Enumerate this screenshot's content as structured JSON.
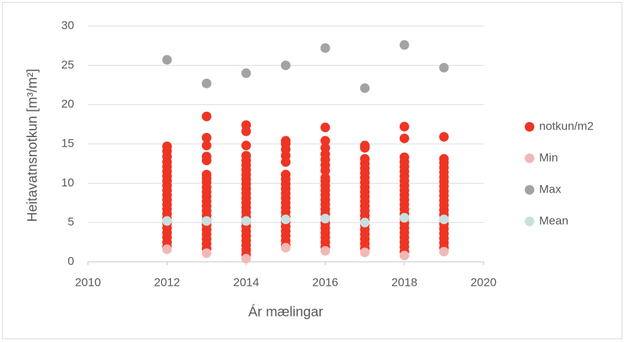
{
  "chart_data": {
    "type": "scatter",
    "xlabel": "Ár mælingar",
    "ylabel": "Heitavatnsnotkun [m³/m²]",
    "xlim": [
      2010,
      2020
    ],
    "xticks": [
      2010,
      2012,
      2014,
      2016,
      2018,
      2020
    ],
    "ylim": [
      0,
      30
    ],
    "yticks": [
      0,
      5,
      10,
      15,
      20,
      25,
      30
    ],
    "grid": true,
    "legend": "right",
    "series": [
      {
        "name": "notkun/m2",
        "color": "#ee3524",
        "x": [
          2012,
          2012,
          2012,
          2012,
          2012,
          2012,
          2012,
          2012,
          2012,
          2012,
          2012,
          2012,
          2012,
          2012,
          2012,
          2012,
          2012,
          2012,
          2012,
          2012,
          2012,
          2012,
          2013,
          2013,
          2013,
          2013,
          2013,
          2013,
          2013,
          2013,
          2013,
          2013,
          2013,
          2013,
          2013,
          2013,
          2013,
          2013,
          2013,
          2013,
          2013,
          2013,
          2013,
          2013,
          2014,
          2014,
          2014,
          2014,
          2014,
          2014,
          2014,
          2014,
          2014,
          2014,
          2014,
          2014,
          2014,
          2014,
          2014,
          2014,
          2014,
          2014,
          2014,
          2014,
          2014,
          2014,
          2014,
          2014,
          2014,
          2015,
          2015,
          2015,
          2015,
          2015,
          2015,
          2015,
          2015,
          2015,
          2015,
          2015,
          2015,
          2015,
          2015,
          2015,
          2015,
          2015,
          2015,
          2015,
          2015,
          2015,
          2016,
          2016,
          2016,
          2016,
          2016,
          2016,
          2016,
          2016,
          2016,
          2016,
          2016,
          2016,
          2016,
          2016,
          2016,
          2016,
          2016,
          2016,
          2016,
          2016,
          2016,
          2016,
          2016,
          2017,
          2017,
          2017,
          2017,
          2017,
          2017,
          2017,
          2017,
          2017,
          2017,
          2017,
          2017,
          2017,
          2017,
          2017,
          2017,
          2017,
          2017,
          2017,
          2017,
          2017,
          2017,
          2018,
          2018,
          2018,
          2018,
          2018,
          2018,
          2018,
          2018,
          2018,
          2018,
          2018,
          2018,
          2018,
          2018,
          2018,
          2018,
          2018,
          2018,
          2018,
          2018,
          2018,
          2018,
          2018,
          2019,
          2019,
          2019,
          2019,
          2019,
          2019,
          2019,
          2019,
          2019,
          2019,
          2019,
          2019,
          2019,
          2019,
          2019,
          2019,
          2019,
          2019,
          2019,
          2019,
          2019
        ],
        "values": [
          1.9,
          2.5,
          3.1,
          3.7,
          4.3,
          4.9,
          5.5,
          6.1,
          6.7,
          7.3,
          7.9,
          8.5,
          9.1,
          9.7,
          10.3,
          10.9,
          11.5,
          12.1,
          12.7,
          13.4,
          14.1,
          14.7,
          1.7,
          2.3,
          2.9,
          3.5,
          4.1,
          4.7,
          5.3,
          5.9,
          6.5,
          7.1,
          7.7,
          8.3,
          8.9,
          9.5,
          10.1,
          10.6,
          11.1,
          12.9,
          13.4,
          14.8,
          15.8,
          18.5,
          0.9,
          1.5,
          2.1,
          2.7,
          3.3,
          3.9,
          4.5,
          5.1,
          5.7,
          6.3,
          6.9,
          7.5,
          8.1,
          8.7,
          9.3,
          9.9,
          10.5,
          11.1,
          11.7,
          12.3,
          12.9,
          13.5,
          14.8,
          16.6,
          17.4,
          2.1,
          2.7,
          3.3,
          3.9,
          4.5,
          5.1,
          5.7,
          6.3,
          6.9,
          7.5,
          8.1,
          8.7,
          9.3,
          9.9,
          10.5,
          11.1,
          12.7,
          13.5,
          14.3,
          15.0,
          15.4,
          1.9,
          2.5,
          3.1,
          3.7,
          4.3,
          4.9,
          5.5,
          6.1,
          6.7,
          7.3,
          7.9,
          8.5,
          9.1,
          9.7,
          10.3,
          10.7,
          11.6,
          12.3,
          13.0,
          13.7,
          14.5,
          15.4,
          17.1,
          1.7,
          2.3,
          2.9,
          3.5,
          4.1,
          4.7,
          5.3,
          5.9,
          6.5,
          7.1,
          7.7,
          8.3,
          8.9,
          9.5,
          10.1,
          10.7,
          11.3,
          11.9,
          12.5,
          13.1,
          14.5,
          14.8,
          1.3,
          1.9,
          2.5,
          3.1,
          3.7,
          4.3,
          4.9,
          5.5,
          6.1,
          6.7,
          7.3,
          7.9,
          8.5,
          9.1,
          9.7,
          10.3,
          10.9,
          11.5,
          12.1,
          12.7,
          13.3,
          15.7,
          17.2,
          1.8,
          2.4,
          3.0,
          3.6,
          4.2,
          4.8,
          5.4,
          6.0,
          6.6,
          7.2,
          7.8,
          8.4,
          9.0,
          9.6,
          10.2,
          10.8,
          11.4,
          12.0,
          12.6,
          13.1,
          15.9
        ]
      },
      {
        "name": "Min",
        "color": "#f2b8b6",
        "x": [
          2012,
          2013,
          2014,
          2015,
          2016,
          2017,
          2018,
          2019
        ],
        "values": [
          1.6,
          1.1,
          0.4,
          1.8,
          1.4,
          1.2,
          0.8,
          1.3
        ]
      },
      {
        "name": "Max",
        "color": "#a3a3a3",
        "x": [
          2012,
          2013,
          2014,
          2015,
          2016,
          2017,
          2018,
          2019
        ],
        "values": [
          25.7,
          22.7,
          24.0,
          25.0,
          27.2,
          22.1,
          27.6,
          24.7
        ]
      },
      {
        "name": "Mean",
        "color": "#c8e0e0",
        "x": [
          2012,
          2013,
          2014,
          2015,
          2016,
          2017,
          2018,
          2019
        ],
        "values": [
          5.2,
          5.2,
          5.2,
          5.4,
          5.5,
          5.0,
          5.6,
          5.4
        ]
      }
    ]
  }
}
